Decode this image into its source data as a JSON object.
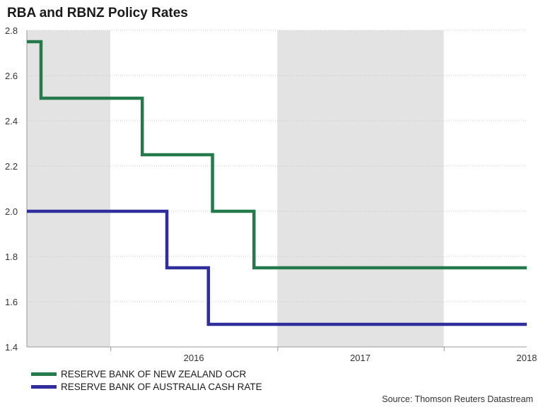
{
  "chart_data": {
    "type": "line",
    "title": "RBA and RBNZ Policy Rates",
    "source": "Source: Thomson Reuters Datastream",
    "xlabel": "",
    "ylabel": "",
    "ylim": [
      1.4,
      2.8
    ],
    "yticks": [
      "1.4",
      "1.6",
      "1.8",
      "2.0",
      "2.2",
      "2.4",
      "2.6",
      "2.8"
    ],
    "xlim": [
      "2015-07-01",
      "2018-07-01"
    ],
    "xtick_labels": [
      {
        "label": "2016",
        "date": "2016-07-01"
      },
      {
        "label": "2017",
        "date": "2017-07-01"
      },
      {
        "label": "2018",
        "date": "2018-07-01"
      }
    ],
    "shaded_periods": [
      {
        "start": "2015-07-01",
        "end": "2015-12-31"
      },
      {
        "start": "2016-12-31",
        "end": "2017-12-31"
      }
    ],
    "grid": true,
    "legend_position": "bottom-left",
    "series": [
      {
        "name": "RESERVE BANK OF NEW ZEALAND OCR",
        "color": "#247a4a",
        "step_points": [
          {
            "date": "2015-07-01",
            "value": 2.75
          },
          {
            "date": "2015-08-01",
            "value": 2.5
          },
          {
            "date": "2016-03-10",
            "value": 2.25
          },
          {
            "date": "2016-08-11",
            "value": 2.0
          },
          {
            "date": "2016-11-10",
            "value": 1.75
          },
          {
            "date": "2018-07-01",
            "value": 1.75
          }
        ]
      },
      {
        "name": "RESERVE BANK OF AUSTRALIA CASH RATE",
        "color": "#2f2e9c",
        "step_points": [
          {
            "date": "2015-07-01",
            "value": 2.0
          },
          {
            "date": "2016-05-03",
            "value": 1.75
          },
          {
            "date": "2016-08-02",
            "value": 1.5
          },
          {
            "date": "2018-07-01",
            "value": 1.5
          }
        ]
      }
    ]
  }
}
